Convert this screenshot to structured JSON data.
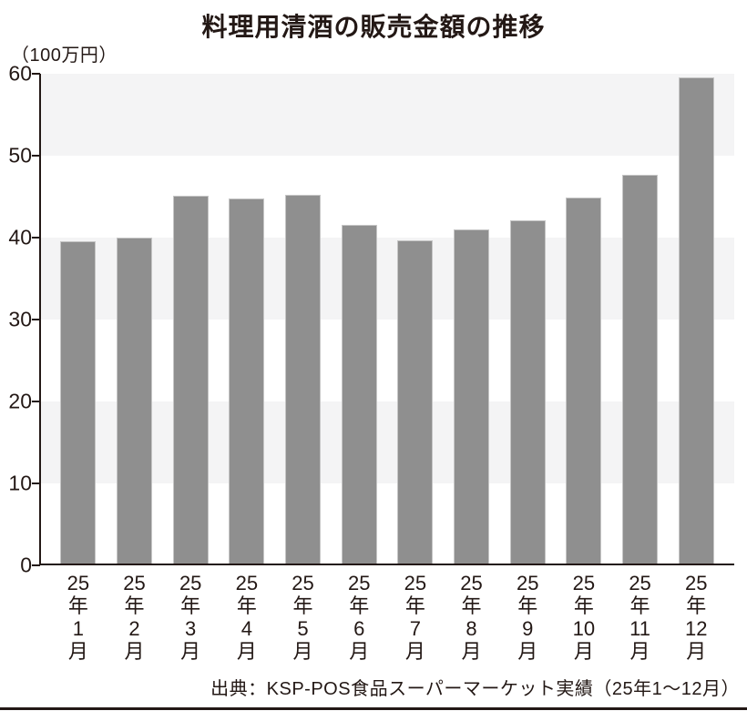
{
  "title": "料理用清酒の販売金額の推移",
  "unit_label": "（100万円）",
  "source": "出典：KSP-POS食品スーパーマーケット実績（25年1～12月）",
  "chart_data": {
    "type": "bar",
    "title": "料理用清酒の販売金額の推移",
    "ylabel": "（100万円）",
    "xlabel": "",
    "ylim": [
      0,
      60
    ],
    "yticks": [
      0,
      10,
      20,
      30,
      40,
      50,
      60
    ],
    "grid": "alternating horizontal gray bands every 10 units, gray in 10-20, 30-40, 50-60 ranges",
    "legend": "none",
    "categories": [
      "25年1月",
      "25年2月",
      "25年3月",
      "25年4月",
      "25年5月",
      "25年6月",
      "25年7月",
      "25年8月",
      "25年9月",
      "25年10月",
      "25年11月",
      "25年12月"
    ],
    "category_lines": [
      [
        "25",
        "年",
        "1",
        "月"
      ],
      [
        "25",
        "年",
        "2",
        "月"
      ],
      [
        "25",
        "年",
        "3",
        "月"
      ],
      [
        "25",
        "年",
        "4",
        "月"
      ],
      [
        "25",
        "年",
        "5",
        "月"
      ],
      [
        "25",
        "年",
        "6",
        "月"
      ],
      [
        "25",
        "年",
        "7",
        "月"
      ],
      [
        "25",
        "年",
        "8",
        "月"
      ],
      [
        "25",
        "年",
        "9",
        "月"
      ],
      [
        "25",
        "年",
        "10",
        "月"
      ],
      [
        "25",
        "年",
        "11",
        "月"
      ],
      [
        "25",
        "年",
        "12",
        "月"
      ]
    ],
    "values": [
      39.5,
      39.9,
      45.1,
      44.7,
      45.2,
      41.5,
      39.6,
      40.9,
      42.1,
      44.8,
      47.6,
      59.6
    ],
    "source": "出典：KSP-POS食品スーパーマーケット実績（25年1～12月）",
    "colors": {
      "bar": "#8f8f8f",
      "bar_edge": "#c6c6c6",
      "band_gray": "#f4f4f5",
      "band_white": "#ffffff",
      "axis": "#231815",
      "text": "#231815",
      "background": "#ffffff"
    }
  }
}
